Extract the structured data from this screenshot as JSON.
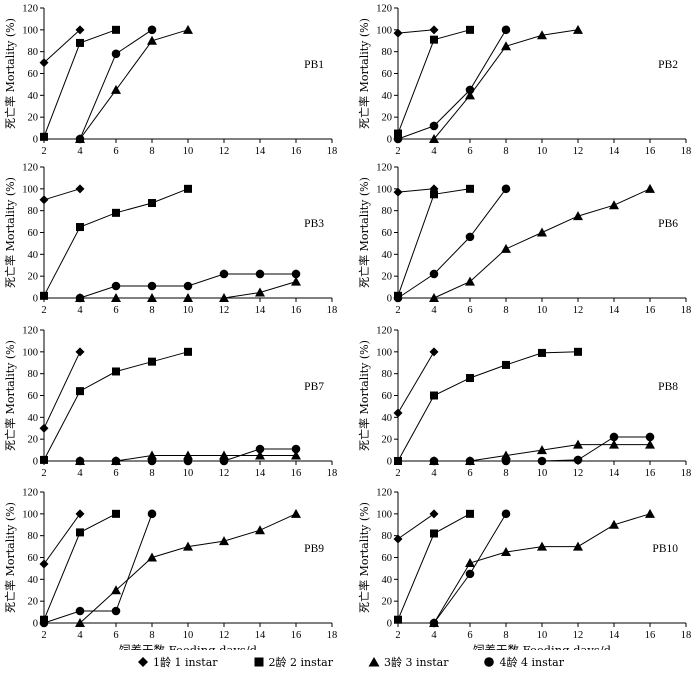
{
  "legend": {
    "s1": "1龄 1 instar",
    "s2": "2龄 2 instar",
    "s3": "3龄 3 instar",
    "s4": "4龄 4 instar"
  },
  "axis_labels": {
    "ylabel": "死亡率 Mortality (%)",
    "xlabel": "饲养天数 Feeding days/d"
  },
  "chart_data": [
    {
      "type": "line",
      "title": "PB1",
      "xlabel": "饲养天数 Feeding days/d",
      "ylabel": "死亡率 Mortality (%)",
      "xlim": [
        2,
        18
      ],
      "ylim": [
        0,
        120
      ],
      "xticks": [
        2,
        4,
        6,
        8,
        10,
        12,
        14,
        16,
        18
      ],
      "yticks": [
        0,
        20,
        40,
        60,
        80,
        100,
        120
      ],
      "series": [
        {
          "name": "1龄 1 instar",
          "marker": "diamond",
          "x": [
            2,
            4
          ],
          "y": [
            70,
            100
          ]
        },
        {
          "name": "2龄 2 instar",
          "marker": "square",
          "x": [
            2,
            4,
            6
          ],
          "y": [
            2,
            88,
            100
          ]
        },
        {
          "name": "3龄 3 instar",
          "marker": "triangle",
          "x": [
            4,
            6,
            8,
            10
          ],
          "y": [
            0,
            45,
            90,
            100
          ]
        },
        {
          "name": "4龄 4 instar",
          "marker": "circle",
          "x": [
            4,
            6,
            8
          ],
          "y": [
            0,
            78,
            100
          ]
        }
      ]
    },
    {
      "type": "line",
      "title": "PB2",
      "xlabel": "饲养天数 Feeding days/d",
      "ylabel": "死亡率 Mortality (%)",
      "xlim": [
        2,
        18
      ],
      "ylim": [
        0,
        120
      ],
      "xticks": [
        2,
        4,
        6,
        8,
        10,
        12,
        14,
        16,
        18
      ],
      "yticks": [
        0,
        20,
        40,
        60,
        80,
        100,
        120
      ],
      "series": [
        {
          "name": "1龄 1 instar",
          "marker": "diamond",
          "x": [
            2,
            4
          ],
          "y": [
            97,
            100
          ]
        },
        {
          "name": "2龄 2 instar",
          "marker": "square",
          "x": [
            2,
            4,
            6
          ],
          "y": [
            5,
            91,
            100
          ]
        },
        {
          "name": "3龄 3 instar",
          "marker": "triangle",
          "x": [
            4,
            6,
            8,
            10,
            12
          ],
          "y": [
            0,
            40,
            85,
            95,
            100
          ]
        },
        {
          "name": "4龄 4 instar",
          "marker": "circle",
          "x": [
            2,
            4,
            6,
            8
          ],
          "y": [
            0,
            12,
            45,
            100
          ]
        }
      ]
    },
    {
      "type": "line",
      "title": "PB3",
      "xlabel": "饲养天数 Feeding days/d",
      "ylabel": "死亡率 Mortality (%)",
      "xlim": [
        2,
        18
      ],
      "ylim": [
        0,
        120
      ],
      "xticks": [
        2,
        4,
        6,
        8,
        10,
        12,
        14,
        16,
        18
      ],
      "yticks": [
        0,
        20,
        40,
        60,
        80,
        100,
        120
      ],
      "series": [
        {
          "name": "1龄 1 instar",
          "marker": "diamond",
          "x": [
            2,
            4
          ],
          "y": [
            90,
            100
          ]
        },
        {
          "name": "2龄 2 instar",
          "marker": "square",
          "x": [
            2,
            4,
            6,
            8,
            10
          ],
          "y": [
            2,
            65,
            78,
            87,
            100
          ]
        },
        {
          "name": "3龄 3 instar",
          "marker": "triangle",
          "x": [
            4,
            6,
            8,
            10,
            12,
            14,
            16
          ],
          "y": [
            0,
            0,
            0,
            0,
            0,
            5,
            15
          ]
        },
        {
          "name": "4龄 4 instar",
          "marker": "circle",
          "x": [
            4,
            6,
            8,
            10,
            12,
            14,
            16
          ],
          "y": [
            0,
            11,
            11,
            11,
            22,
            22,
            22
          ]
        }
      ]
    },
    {
      "type": "line",
      "title": "PB6",
      "xlabel": "饲养天数 Feeding days/d",
      "ylabel": "死亡率 Mortality (%)",
      "xlim": [
        2,
        18
      ],
      "ylim": [
        0,
        120
      ],
      "xticks": [
        2,
        4,
        6,
        8,
        10,
        12,
        14,
        16,
        18
      ],
      "yticks": [
        0,
        20,
        40,
        60,
        80,
        100,
        120
      ],
      "series": [
        {
          "name": "1龄 1 instar",
          "marker": "diamond",
          "x": [
            2,
            4
          ],
          "y": [
            97,
            100
          ]
        },
        {
          "name": "2龄 2 instar",
          "marker": "square",
          "x": [
            2,
            4,
            6
          ],
          "y": [
            2,
            95,
            100
          ]
        },
        {
          "name": "3龄 3 instar",
          "marker": "triangle",
          "x": [
            4,
            6,
            8,
            10,
            12,
            14,
            16
          ],
          "y": [
            0,
            15,
            45,
            60,
            75,
            85,
            100
          ]
        },
        {
          "name": "4龄 4 instar",
          "marker": "circle",
          "x": [
            2,
            4,
            6,
            8
          ],
          "y": [
            0,
            22,
            56,
            100
          ]
        }
      ]
    },
    {
      "type": "line",
      "title": "PB7",
      "xlabel": "饲养天数 Feeding days/d",
      "ylabel": "死亡率 Mortality (%)",
      "xlim": [
        2,
        18
      ],
      "ylim": [
        0,
        120
      ],
      "xticks": [
        2,
        4,
        6,
        8,
        10,
        12,
        14,
        16,
        18
      ],
      "yticks": [
        0,
        20,
        40,
        60,
        80,
        100,
        120
      ],
      "series": [
        {
          "name": "1龄 1 instar",
          "marker": "diamond",
          "x": [
            2,
            4
          ],
          "y": [
            30,
            100
          ]
        },
        {
          "name": "2龄 2 instar",
          "marker": "square",
          "x": [
            2,
            4,
            6,
            8,
            10
          ],
          "y": [
            1,
            64,
            82,
            91,
            100
          ]
        },
        {
          "name": "3龄 3 instar",
          "marker": "triangle",
          "x": [
            4,
            6,
            8,
            10,
            12,
            14,
            16
          ],
          "y": [
            0,
            0,
            5,
            5,
            5,
            5,
            5
          ]
        },
        {
          "name": "4龄 4 instar",
          "marker": "circle",
          "x": [
            4,
            6,
            8,
            10,
            12,
            14,
            16
          ],
          "y": [
            0,
            0,
            0,
            0,
            0,
            11,
            11
          ]
        }
      ]
    },
    {
      "type": "line",
      "title": "PB8",
      "xlabel": "饲养天数 Feeding days/d",
      "ylabel": "死亡率 Mortality (%)",
      "xlim": [
        2,
        18
      ],
      "ylim": [
        0,
        120
      ],
      "xticks": [
        2,
        4,
        6,
        8,
        10,
        12,
        14,
        16,
        18
      ],
      "yticks": [
        0,
        20,
        40,
        60,
        80,
        100,
        120
      ],
      "series": [
        {
          "name": "1龄 1 instar",
          "marker": "diamond",
          "x": [
            2,
            4
          ],
          "y": [
            44,
            100
          ]
        },
        {
          "name": "2龄 2 instar",
          "marker": "square",
          "x": [
            2,
            4,
            6,
            8,
            10,
            12
          ],
          "y": [
            0,
            60,
            76,
            88,
            99,
            100
          ]
        },
        {
          "name": "3龄 3 instar",
          "marker": "triangle",
          "x": [
            4,
            6,
            8,
            10,
            12,
            14,
            16
          ],
          "y": [
            0,
            0,
            5,
            10,
            15,
            15,
            15
          ]
        },
        {
          "name": "4龄 4 instar",
          "marker": "circle",
          "x": [
            4,
            6,
            8,
            10,
            12,
            14,
            16
          ],
          "y": [
            0,
            0,
            0,
            0,
            1,
            22,
            22
          ]
        }
      ]
    },
    {
      "type": "line",
      "title": "PB9",
      "xlabel": "饲养天数 Feeding days/d",
      "ylabel": "死亡率 Mortality (%)",
      "xlim": [
        2,
        18
      ],
      "ylim": [
        0,
        120
      ],
      "xticks": [
        2,
        4,
        6,
        8,
        10,
        12,
        14,
        16,
        18
      ],
      "yticks": [
        0,
        20,
        40,
        60,
        80,
        100,
        120
      ],
      "series": [
        {
          "name": "1龄 1 instar",
          "marker": "diamond",
          "x": [
            2,
            4
          ],
          "y": [
            54,
            100
          ]
        },
        {
          "name": "2龄 2 instar",
          "marker": "square",
          "x": [
            2,
            4,
            6
          ],
          "y": [
            3,
            83,
            100
          ]
        },
        {
          "name": "3龄 3 instar",
          "marker": "triangle",
          "x": [
            4,
            6,
            8,
            10,
            12,
            14,
            16
          ],
          "y": [
            0,
            30,
            60,
            70,
            75,
            85,
            100
          ]
        },
        {
          "name": "4龄 4 instar",
          "marker": "circle",
          "x": [
            2,
            4,
            6,
            8
          ],
          "y": [
            0,
            11,
            11,
            100
          ]
        }
      ]
    },
    {
      "type": "line",
      "title": "PB10",
      "xlabel": "饲养天数 Feeding days/d",
      "ylabel": "死亡率 Mortality (%)",
      "xlim": [
        2,
        18
      ],
      "ylim": [
        0,
        120
      ],
      "xticks": [
        2,
        4,
        6,
        8,
        10,
        12,
        14,
        16,
        18
      ],
      "yticks": [
        0,
        20,
        40,
        60,
        80,
        100,
        120
      ],
      "series": [
        {
          "name": "1龄 1 instar",
          "marker": "diamond",
          "x": [
            2,
            4
          ],
          "y": [
            77,
            100
          ]
        },
        {
          "name": "2龄 2 instar",
          "marker": "square",
          "x": [
            2,
            4,
            6
          ],
          "y": [
            3,
            82,
            100
          ]
        },
        {
          "name": "3龄 3 instar",
          "marker": "triangle",
          "x": [
            4,
            6,
            8,
            10,
            12,
            14,
            16
          ],
          "y": [
            0,
            55,
            65,
            70,
            70,
            90,
            100
          ]
        },
        {
          "name": "4龄 4 instar",
          "marker": "circle",
          "x": [
            4,
            6,
            8
          ],
          "y": [
            0,
            45,
            100
          ]
        }
      ]
    }
  ]
}
